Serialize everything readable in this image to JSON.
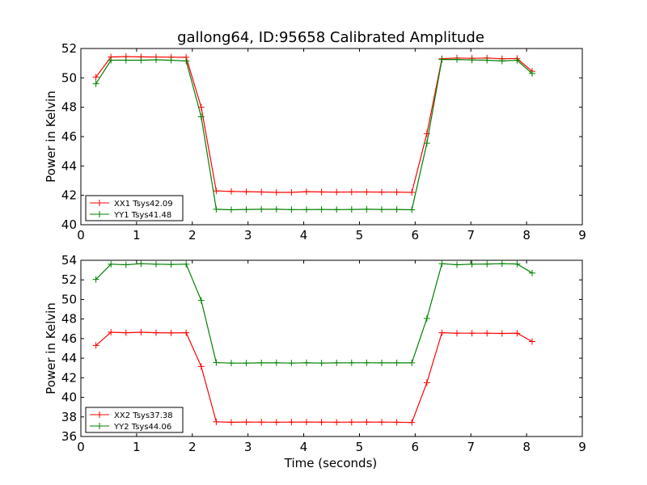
{
  "chart_data": {
    "type": "line",
    "title": "gallong64, ID:95658 Calibrated Amplitude",
    "x": [
      0.27,
      0.54,
      0.81,
      1.08,
      1.35,
      1.62,
      1.89,
      2.16,
      2.43,
      2.7,
      2.97,
      3.24,
      3.51,
      3.78,
      4.05,
      4.32,
      4.59,
      4.86,
      5.13,
      5.4,
      5.67,
      5.94,
      6.21,
      6.48,
      6.75,
      7.02,
      7.29,
      7.56,
      7.83,
      8.1
    ],
    "xlabel": "Time (seconds)",
    "xlim": [
      0,
      9
    ],
    "xticks": [
      0,
      1,
      2,
      3,
      4,
      5,
      6,
      7,
      8,
      9
    ],
    "grid": false,
    "colors": {
      "XX": "#ff0000",
      "YY": "#008000"
    },
    "panels": [
      {
        "ylabel": "Power in Kelvin",
        "ylim": [
          40,
          52
        ],
        "yticks": [
          40,
          42,
          44,
          46,
          48,
          50,
          52
        ],
        "legend_position": "lower-left",
        "series": [
          {
            "name": "XX1 Tsys42.09",
            "color": "#ff0000",
            "values": [
              50.05,
              51.42,
              51.45,
              51.43,
              51.42,
              51.41,
              51.4,
              48.0,
              42.3,
              42.27,
              42.25,
              42.23,
              42.2,
              42.2,
              42.25,
              42.23,
              42.22,
              42.23,
              42.23,
              42.22,
              42.22,
              42.2,
              46.2,
              51.3,
              51.35,
              51.33,
              51.35,
              51.3,
              51.32,
              50.45
            ]
          },
          {
            "name": "YY1 Tsys41.48",
            "color": "#008000",
            "values": [
              49.6,
              51.2,
              51.2,
              51.2,
              51.23,
              51.2,
              51.15,
              47.35,
              41.05,
              41.02,
              41.04,
              41.05,
              41.05,
              41.03,
              41.03,
              41.04,
              41.03,
              41.04,
              41.05,
              41.04,
              41.04,
              41.02,
              45.55,
              51.25,
              51.25,
              51.22,
              51.2,
              51.15,
              51.2,
              50.3
            ]
          }
        ]
      },
      {
        "ylabel": "Power in Kelvin",
        "ylim": [
          36,
          54
        ],
        "yticks": [
          36,
          38,
          40,
          42,
          44,
          46,
          48,
          50,
          52,
          54
        ],
        "legend_position": "lower-left",
        "series": [
          {
            "name": "XX2 Tsys37.38",
            "color": "#ff0000",
            "values": [
              45.3,
              46.65,
              46.6,
              46.65,
              46.6,
              46.58,
              46.6,
              43.15,
              37.5,
              37.45,
              37.48,
              37.47,
              37.46,
              37.47,
              37.48,
              37.47,
              37.46,
              37.47,
              37.48,
              37.47,
              37.46,
              37.43,
              41.5,
              46.6,
              46.55,
              46.55,
              46.55,
              46.53,
              46.55,
              45.7
            ]
          },
          {
            "name": "YY2 Tsys44.06",
            "color": "#008000",
            "values": [
              52.05,
              53.6,
              53.55,
              53.65,
              53.6,
              53.58,
              53.6,
              49.9,
              43.55,
              43.5,
              43.5,
              43.52,
              43.53,
              43.5,
              43.53,
              43.5,
              43.52,
              43.53,
              43.53,
              43.52,
              43.52,
              43.52,
              48.05,
              53.65,
              53.55,
              53.6,
              53.62,
              53.65,
              53.62,
              52.7
            ]
          }
        ]
      }
    ]
  }
}
